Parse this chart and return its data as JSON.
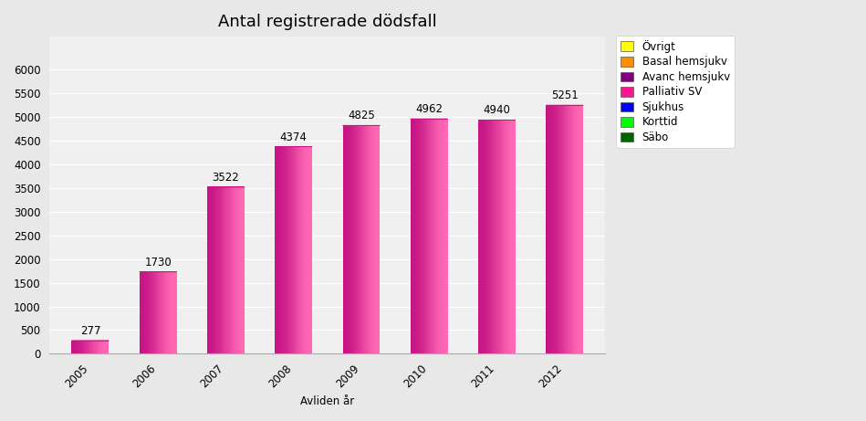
{
  "title": "Antal registrerade dödsfall",
  "xlabel": "Avliden år",
  "years": [
    2005,
    2006,
    2007,
    2008,
    2009,
    2010,
    2011,
    2012
  ],
  "values": [
    277,
    1730,
    3522,
    4374,
    4825,
    4962,
    4940,
    5251
  ],
  "bar_color_main": "#FF1493",
  "bar_color_light": "#FF69B4",
  "bar_color_dark": "#C71585",
  "bar_color_shadow": "#A0006B",
  "background_color": "#E8E8E8",
  "plot_bg_color": "#F0F0F0",
  "ylim": [
    0,
    6700
  ],
  "yticks": [
    0,
    500,
    1000,
    1500,
    2000,
    2500,
    3000,
    3500,
    4000,
    4500,
    5000,
    5500,
    6000
  ],
  "legend_items": [
    {
      "label": "Övrigt",
      "color": "#FFFF00"
    },
    {
      "label": "Basal hemsjukv",
      "color": "#FF8C00"
    },
    {
      "label": "Avanc hemsjukv",
      "color": "#800080"
    },
    {
      "label": "Palliativ SV",
      "color": "#FF1493"
    },
    {
      "label": "Sjukhus",
      "color": "#0000FF"
    },
    {
      "label": "Korttid",
      "color": "#00FF00"
    },
    {
      "label": "Säbo",
      "color": "#006400"
    }
  ],
  "title_fontsize": 13,
  "label_fontsize": 8.5,
  "tick_fontsize": 8.5,
  "annotation_fontsize": 8.5
}
